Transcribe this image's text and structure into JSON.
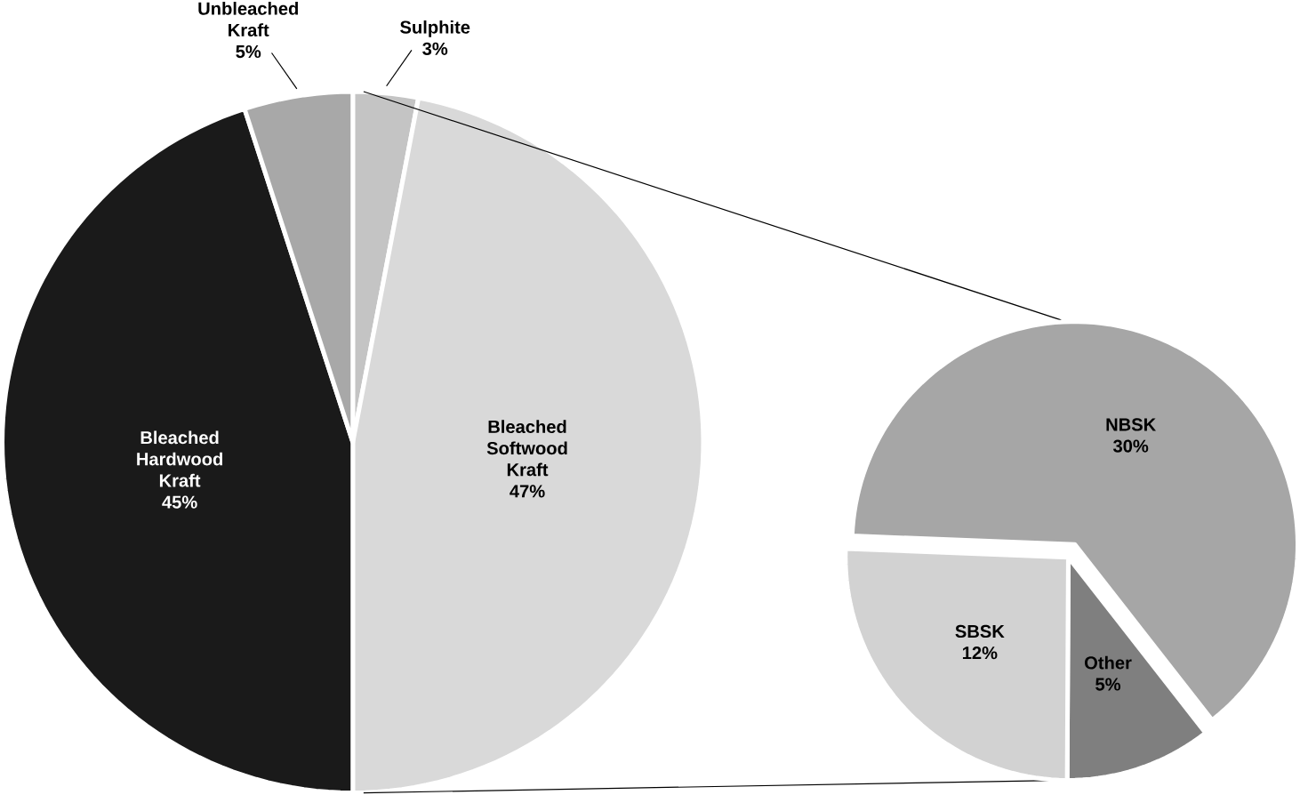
{
  "chart_data": [
    {
      "type": "pie",
      "categories": [
        "Sulphite",
        "Bleached Softwood Kraft",
        "Bleached Hardwood Kraft",
        "Unbleached Kraft"
      ],
      "values": [
        3,
        47,
        45,
        5
      ],
      "colors": [
        "#c4c4c4",
        "#d9d9d9",
        "#1a1a1a",
        "#a8a8a8"
      ],
      "value_labels": [
        "3%",
        "47%",
        "45%",
        "5%"
      ]
    },
    {
      "type": "pie",
      "categories": [
        "Other",
        "SBSK",
        "NBSK"
      ],
      "values": [
        5,
        12,
        30
      ],
      "colors": [
        "#7f7f7f",
        "#d2d2d2",
        "#a6a6a6"
      ],
      "value_labels": [
        "5%",
        "12%",
        "30%"
      ]
    }
  ]
}
